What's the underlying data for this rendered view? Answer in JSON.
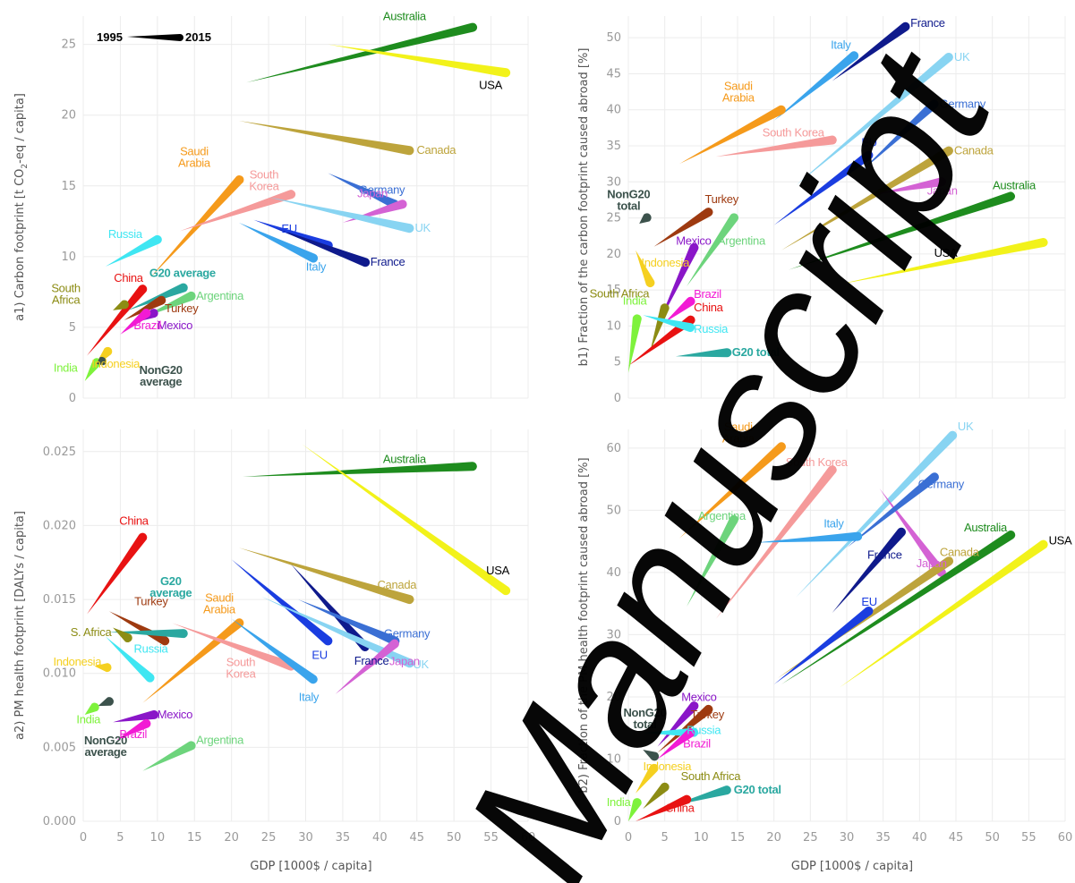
{
  "watermark": "Manuscript",
  "legend": {
    "start": "1995",
    "end": "2015"
  },
  "colors": {
    "Australia": "#1e8c1e",
    "USA": "#f2f21a",
    "Canada": "#bda43c",
    "Saudi Arabia": "#f59a1b",
    "South Korea": "#f59a9a",
    "Germany": "#3a6fd4",
    "Japan": "#d462d4",
    "UK": "#88d4f2",
    "Russia": "#3fe6f2",
    "EU": "#1a3de0",
    "France": "#0f1a8c",
    "Italy": "#3aa4ec",
    "China": "#e81212",
    "G20 average": "#2aa8a0",
    "G20 total": "#2aa8a0",
    "South Africa": "#8c8c14",
    "Argentina": "#6dd47c",
    "Turkey": "#9e3a10",
    "Mexico": "#8a16c8",
    "Brazil": "#f21ad4",
    "India": "#7ef23c",
    "Indonesia": "#f5d020",
    "NonG20 average": "#3c524c",
    "NonG20 total": "#3c524c"
  },
  "chart_data": [
    {
      "id": "a1",
      "type": "line",
      "ylabel_main": "a1) Carbon footprint [t CO",
      "ylabel_sub": "2",
      "ylabel_end": "-eq / capita]",
      "xlabel": "",
      "xlim": [
        0,
        60
      ],
      "ylim": [
        0,
        27
      ],
      "yticks": [
        "0",
        "5",
        "10",
        "15",
        "20",
        "25"
      ],
      "xticks": [],
      "series": [
        {
          "name": "Australia",
          "x0": 22,
          "y0": 22.3,
          "x1": 52.5,
          "y1": 26.2,
          "label": "Australia"
        },
        {
          "name": "USA",
          "x0": 33,
          "y0": 25.0,
          "x1": 57,
          "y1": 23.0,
          "label": "USA"
        },
        {
          "name": "Canada",
          "x0": 21,
          "y0": 19.6,
          "x1": 44,
          "y1": 17.5,
          "label": "Canada"
        },
        {
          "name": "Saudi Arabia",
          "x0": 9,
          "y0": 8.5,
          "x1": 21,
          "y1": 15.4,
          "label": "Saudi\nArabia"
        },
        {
          "name": "South Korea",
          "x0": 13,
          "y0": 11.8,
          "x1": 28,
          "y1": 14.4,
          "label": "South\nKorea"
        },
        {
          "name": "Germany",
          "x0": 33,
          "y0": 15.9,
          "x1": 42,
          "y1": 13.7,
          "label": "Germany"
        },
        {
          "name": "Japan",
          "x0": 35,
          "y0": 12.4,
          "x1": 43,
          "y1": 13.7,
          "label": "Japan"
        },
        {
          "name": "UK",
          "x0": 25,
          "y0": 14.2,
          "x1": 44,
          "y1": 12.0,
          "label": "UK"
        },
        {
          "name": "Russia",
          "x0": 3,
          "y0": 9.3,
          "x1": 10,
          "y1": 11.2,
          "label": "Russia"
        },
        {
          "name": "EU",
          "x0": 23,
          "y0": 12.6,
          "x1": 33,
          "y1": 10.8,
          "label": "EU"
        },
        {
          "name": "France",
          "x0": 26,
          "y0": 12.0,
          "x1": 38,
          "y1": 9.6,
          "label": "France"
        },
        {
          "name": "Italy",
          "x0": 21,
          "y0": 12.4,
          "x1": 31,
          "y1": 9.9,
          "label": "Italy"
        },
        {
          "name": "China",
          "x0": 0.5,
          "y0": 3.0,
          "x1": 8,
          "y1": 7.7,
          "label": "China"
        },
        {
          "name": "G20 average",
          "x0": 6,
          "y0": 6.2,
          "x1": 13.5,
          "y1": 7.8,
          "label": "G20 average"
        },
        {
          "name": "South Africa",
          "x0": 4,
          "y0": 6.2,
          "x1": 5.5,
          "y1": 6.6,
          "label": "South\nAfrica"
        },
        {
          "name": "Argentina",
          "x0": 8,
          "y0": 5.7,
          "x1": 14.5,
          "y1": 7.2,
          "label": "Argentina"
        },
        {
          "name": "Turkey",
          "x0": 5.5,
          "y0": 5.5,
          "x1": 10.5,
          "y1": 6.9,
          "label": "Turkey"
        },
        {
          "name": "Mexico",
          "x0": 6.5,
          "y0": 5.3,
          "x1": 9.5,
          "y1": 6.0,
          "label": "Mexico"
        },
        {
          "name": "Brazil",
          "x0": 5,
          "y0": 4.5,
          "x1": 8.5,
          "y1": 6.0,
          "label": "Brazil"
        },
        {
          "name": "India",
          "x0": 0.2,
          "y0": 1.2,
          "x1": 1.8,
          "y1": 2.5,
          "label": "India"
        },
        {
          "name": "Indonesia",
          "x0": 1.5,
          "y0": 2.2,
          "x1": 3.3,
          "y1": 3.3,
          "label": "Indonesia"
        },
        {
          "name": "NonG20 average",
          "x0": 1.8,
          "y0": 2.4,
          "x1": 2.5,
          "y1": 2.6,
          "label": "NonG20\naverage"
        }
      ]
    },
    {
      "id": "b1",
      "type": "line",
      "ylabel_main": "b1) Fraction of the carbon footprint caused abroad [%]",
      "xlabel": "",
      "xlim": [
        0,
        60
      ],
      "ylim": [
        0,
        53
      ],
      "yticks": [
        "0",
        "5",
        "10",
        "15",
        "20",
        "25",
        "30",
        "35",
        "40",
        "45",
        "50"
      ],
      "xticks": [],
      "series": [
        {
          "name": "France",
          "x0": 28,
          "y0": 44,
          "x1": 38,
          "y1": 51.5,
          "label": "France"
        },
        {
          "name": "Italy",
          "x0": 20,
          "y0": 38.5,
          "x1": 31,
          "y1": 47.5,
          "label": "Italy"
        },
        {
          "name": "UK",
          "x0": 23,
          "y0": 29.5,
          "x1": 44,
          "y1": 47.3,
          "label": "UK"
        },
        {
          "name": "Saudi Arabia",
          "x0": 7,
          "y0": 32.5,
          "x1": 21,
          "y1": 40,
          "label": "Saudi\nArabia"
        },
        {
          "name": "Germany",
          "x0": 32,
          "y0": 31.5,
          "x1": 42,
          "y1": 40.8,
          "label": "Germany"
        },
        {
          "name": "South Korea",
          "x0": 12,
          "y0": 33.5,
          "x1": 28,
          "y1": 35.8,
          "label": "South Korea"
        },
        {
          "name": "EU",
          "x0": 20,
          "y0": 24,
          "x1": 33,
          "y1": 33.7,
          "label": "EU"
        },
        {
          "name": "Canada",
          "x0": 21,
          "y0": 20.5,
          "x1": 44,
          "y1": 34.3,
          "label": "Canada"
        },
        {
          "name": "Japan",
          "x0": 34,
          "y0": 28.3,
          "x1": 43,
          "y1": 30,
          "label": "Japan"
        },
        {
          "name": "Australia",
          "x0": 22,
          "y0": 17.8,
          "x1": 52.5,
          "y1": 28.0,
          "label": "Australia"
        },
        {
          "name": "NonG20 total",
          "x0": 1.5,
          "y0": 24.2,
          "x1": 2.5,
          "y1": 25.0,
          "label": "NonG20\ntotal"
        },
        {
          "name": "Turkey",
          "x0": 3.5,
          "y0": 21,
          "x1": 11,
          "y1": 25.8,
          "label": "Turkey"
        },
        {
          "name": "Argentina",
          "x0": 8,
          "y0": 15.5,
          "x1": 14.5,
          "y1": 25,
          "label": "Argentina"
        },
        {
          "name": "USA",
          "x0": 29,
          "y0": 15.8,
          "x1": 57,
          "y1": 21.6,
          "label": "USA"
        },
        {
          "name": "Indonesia",
          "x0": 1,
          "y0": 20.5,
          "x1": 3,
          "y1": 16,
          "label": "Indonesia"
        },
        {
          "name": "Mexico",
          "x0": 4,
          "y0": 10,
          "x1": 9,
          "y1": 20.8,
          "label": "Mexico"
        },
        {
          "name": "Brazil",
          "x0": 5,
          "y0": 10.5,
          "x1": 8.5,
          "y1": 13.4,
          "label": "Brazil"
        },
        {
          "name": "South Africa",
          "x0": 3,
          "y0": 6.5,
          "x1": 5,
          "y1": 12.5,
          "label": "South Africa"
        },
        {
          "name": "China",
          "x0": 0,
          "y0": 4.5,
          "x1": 8.5,
          "y1": 10.8,
          "label": "China"
        },
        {
          "name": "India",
          "x0": 0,
          "y0": 3.5,
          "x1": 1.2,
          "y1": 11,
          "label": "India"
        },
        {
          "name": "Russia",
          "x0": 2,
          "y0": 11.5,
          "x1": 8.5,
          "y1": 9.8,
          "label": "Russia"
        },
        {
          "name": "G20 total",
          "x0": 6.5,
          "y0": 5.8,
          "x1": 13.5,
          "y1": 6.3,
          "label": "G20 total"
        }
      ]
    },
    {
      "id": "a2",
      "type": "line",
      "ylabel_main": "a2) PM health footprint [DALYs / capita]",
      "xlabel": "GDP [1000$ / capita]",
      "xlim": [
        0,
        60
      ],
      "ylim": [
        0,
        0.0265
      ],
      "yticks": [
        "0.000",
        "0.005",
        "0.010",
        "0.015",
        "0.020",
        "0.025"
      ],
      "xticks": [
        "0",
        "5",
        "10",
        "15",
        "20",
        "25",
        "30",
        "35",
        "40",
        "45",
        "50",
        "55",
        "60"
      ],
      "series": [
        {
          "name": "Australia",
          "x0": 21.5,
          "y0": 0.0233,
          "x1": 52.5,
          "y1": 0.024,
          "label": "Australia"
        },
        {
          "name": "USA",
          "x0": 29.5,
          "y0": 0.0255,
          "x1": 57,
          "y1": 0.0156,
          "label": "USA"
        },
        {
          "name": "China",
          "x0": 0.5,
          "y0": 0.014,
          "x1": 8,
          "y1": 0.0192,
          "label": "China"
        },
        {
          "name": "Turkey",
          "x0": 3.5,
          "y0": 0.0142,
          "x1": 11,
          "y1": 0.0122,
          "label": "Turkey"
        },
        {
          "name": "G20 average",
          "x0": 3.5,
          "y0": 0.0128,
          "x1": 13.5,
          "y1": 0.0127,
          "label": "G20\naverage"
        },
        {
          "name": "South Africa",
          "x0": 4,
          "y0": 0.0131,
          "x1": 6,
          "y1": 0.0124,
          "label": "S. Africa"
        },
        {
          "name": "Canada",
          "x0": 21,
          "y0": 0.0185,
          "x1": 44,
          "y1": 0.015,
          "label": "Canada"
        },
        {
          "name": "Saudi Arabia",
          "x0": 8,
          "y0": 0.008,
          "x1": 21,
          "y1": 0.0134,
          "label": "Saudi\nArabia"
        },
        {
          "name": "South Korea",
          "x0": 12,
          "y0": 0.0134,
          "x1": 28,
          "y1": 0.0105,
          "label": "South\nKorea"
        },
        {
          "name": "EU",
          "x0": 20,
          "y0": 0.0177,
          "x1": 33,
          "y1": 0.0122,
          "label": "EU"
        },
        {
          "name": "France",
          "x0": 28,
          "y0": 0.0174,
          "x1": 38,
          "y1": 0.0118,
          "label": "France"
        },
        {
          "name": "Germany",
          "x0": 29,
          "y0": 0.015,
          "x1": 42,
          "y1": 0.0122,
          "label": "Germany"
        },
        {
          "name": "UK",
          "x0": 24,
          "y0": 0.0152,
          "x1": 44,
          "y1": 0.0107,
          "label": "UK"
        },
        {
          "name": "Italy",
          "x0": 20,
          "y0": 0.0137,
          "x1": 31,
          "y1": 0.0096,
          "label": "Italy"
        },
        {
          "name": "Japan",
          "x0": 34,
          "y0": 0.0086,
          "x1": 42,
          "y1": 0.012,
          "label": "Japan"
        },
        {
          "name": "Russia",
          "x0": 3,
          "y0": 0.0125,
          "x1": 9,
          "y1": 0.0097,
          "label": "Russia"
        },
        {
          "name": "Indonesia",
          "x0": 1.5,
          "y0": 0.0105,
          "x1": 3.2,
          "y1": 0.0104,
          "label": "Indonesia"
        },
        {
          "name": "NonG20 average",
          "x0": 2,
          "y0": 0.0078,
          "x1": 3.5,
          "y1": 0.0081,
          "label": "NonG20\naverage"
        },
        {
          "name": "India",
          "x0": 0.2,
          "y0": 0.0072,
          "x1": 1.5,
          "y1": 0.0077,
          "label": "India"
        },
        {
          "name": "Mexico",
          "x0": 4,
          "y0": 0.0067,
          "x1": 9.5,
          "y1": 0.0072,
          "label": "Mexico"
        },
        {
          "name": "Brazil",
          "x0": 4.5,
          "y0": 0.0055,
          "x1": 8.5,
          "y1": 0.0066,
          "label": "Brazil"
        },
        {
          "name": "Argentina",
          "x0": 8,
          "y0": 0.0034,
          "x1": 14.5,
          "y1": 0.0051,
          "label": "Argentina"
        }
      ]
    },
    {
      "id": "b2",
      "type": "line",
      "ylabel_main": "b2) Fraction of the PM health footprint caused abroad [%]",
      "xlabel": "GDP [1000$ / capita]",
      "xlim": [
        0,
        60
      ],
      "ylim": [
        0,
        63
      ],
      "yticks": [
        "0",
        "10",
        "20",
        "30",
        "40",
        "50",
        "60"
      ],
      "xticks": [
        "0",
        "5",
        "10",
        "15",
        "20",
        "25",
        "30",
        "35",
        "40",
        "45",
        "50",
        "55",
        "60"
      ],
      "series": [
        {
          "name": "Saudi Arabia",
          "x0": 7,
          "y0": 45.5,
          "x1": 21,
          "y1": 60.2,
          "label": "Saudi\nArabia"
        },
        {
          "name": "South Korea",
          "x0": 12,
          "y0": 32.5,
          "x1": 28,
          "y1": 56.5,
          "label": "South Korea"
        },
        {
          "name": "UK",
          "x0": 23,
          "y0": 36,
          "x1": 44.5,
          "y1": 62,
          "label": "UK"
        },
        {
          "name": "Japan",
          "x0": 34.5,
          "y0": 53.5,
          "x1": 43,
          "y1": 40,
          "label": "Japan"
        },
        {
          "name": "Germany",
          "x0": 30,
          "y0": 44,
          "x1": 42,
          "y1": 55.3,
          "label": "Germany"
        },
        {
          "name": "Argentina",
          "x0": 8,
          "y0": 34.5,
          "x1": 14.5,
          "y1": 48.5,
          "label": "Argentina"
        },
        {
          "name": "Italy",
          "x0": 17.5,
          "y0": 44.8,
          "x1": 31.5,
          "y1": 45.8,
          "label": "Italy"
        },
        {
          "name": "France",
          "x0": 28,
          "y0": 33.5,
          "x1": 37.5,
          "y1": 46.5,
          "label": "France"
        },
        {
          "name": "Australia",
          "x0": 21,
          "y0": 22,
          "x1": 52.5,
          "y1": 46,
          "label": "Australia"
        },
        {
          "name": "USA",
          "x0": 29,
          "y0": 21.5,
          "x1": 57,
          "y1": 44.5,
          "label": "USA"
        },
        {
          "name": "Canada",
          "x0": 20.5,
          "y0": 23,
          "x1": 44,
          "y1": 41.8,
          "label": "Canada"
        },
        {
          "name": "EU",
          "x0": 20,
          "y0": 22,
          "x1": 33,
          "y1": 33.8,
          "label": "EU"
        },
        {
          "name": "NonG20 total",
          "x0": 2,
          "y0": 11.5,
          "x1": 3.5,
          "y1": 10.5,
          "label": "NonG20\ntotal"
        },
        {
          "name": "Mexico",
          "x0": 4,
          "y0": 12,
          "x1": 9,
          "y1": 18.5,
          "label": "Mexico"
        },
        {
          "name": "Turkey",
          "x0": 4,
          "y0": 11,
          "x1": 11,
          "y1": 18,
          "label": "Turkey"
        },
        {
          "name": "Russia",
          "x0": 2,
          "y0": 14.2,
          "x1": 9,
          "y1": 14.3,
          "label": "Russia"
        },
        {
          "name": "Brazil",
          "x0": 4,
          "y0": 10,
          "x1": 8.5,
          "y1": 14.2,
          "label": "Brazil"
        },
        {
          "name": "Indonesia",
          "x0": 1,
          "y0": 4.5,
          "x1": 3.5,
          "y1": 8.5,
          "label": "Indonesia"
        },
        {
          "name": "South Africa",
          "x0": 2,
          "y0": 2,
          "x1": 5,
          "y1": 5.5,
          "label": "South Africa"
        },
        {
          "name": "G20 total",
          "x0": 6,
          "y0": 2.5,
          "x1": 13.5,
          "y1": 5,
          "label": "G20 total"
        },
        {
          "name": "China",
          "x0": 1,
          "y0": 0,
          "x1": 8,
          "y1": 3.5,
          "label": "China"
        },
        {
          "name": "India",
          "x0": 0,
          "y0": 0,
          "x1": 1.2,
          "y1": 3,
          "label": "India"
        }
      ]
    }
  ]
}
